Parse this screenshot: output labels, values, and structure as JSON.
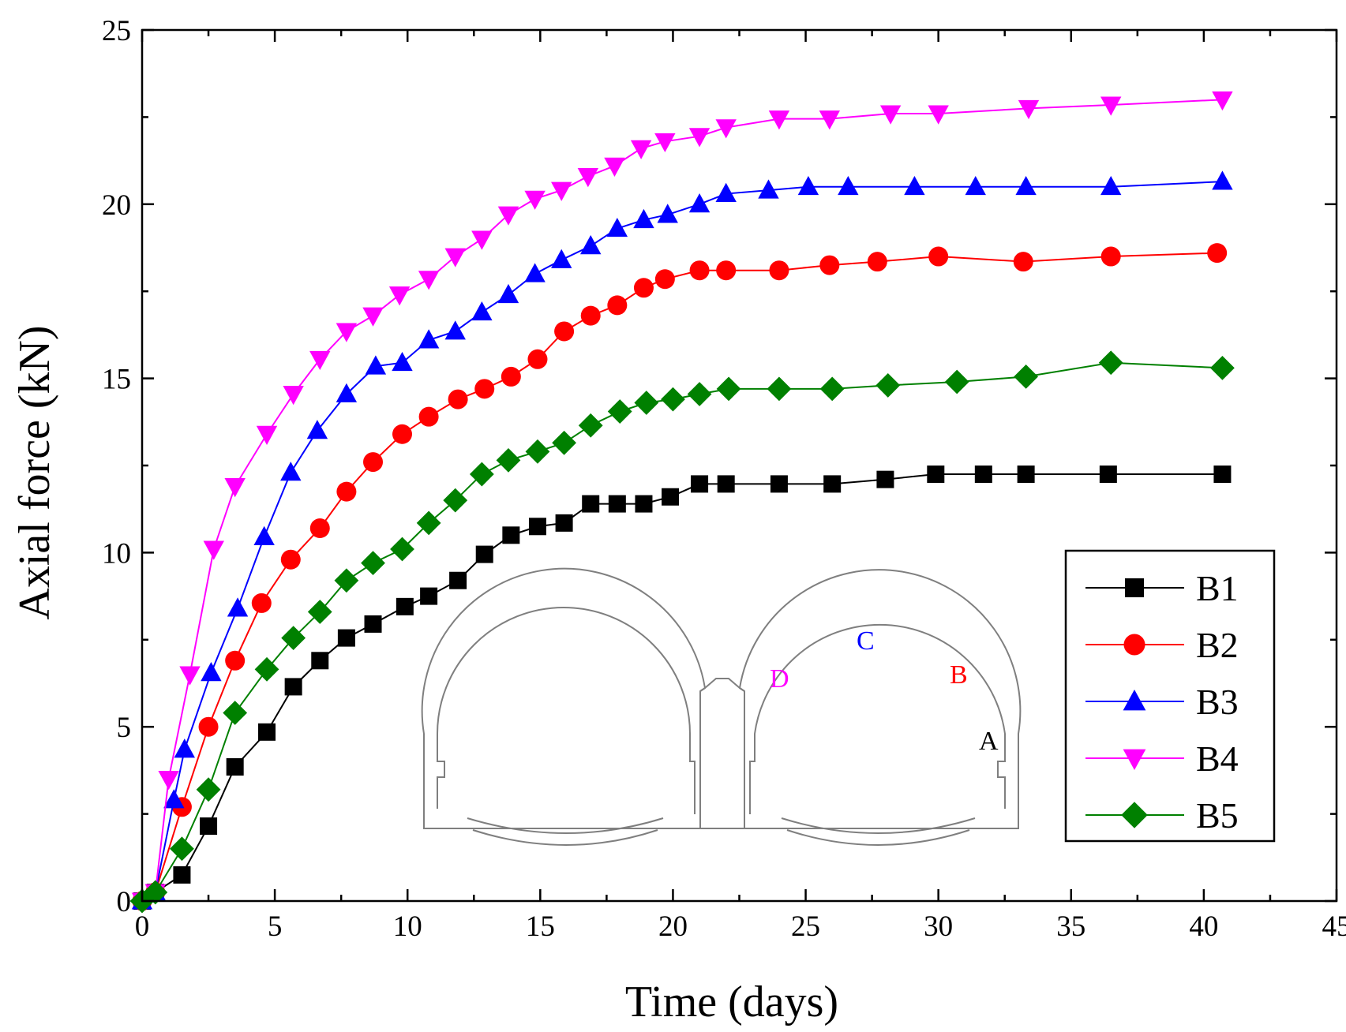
{
  "chart_data": {
    "type": "line",
    "xlabel": "Time (days)",
    "ylabel": "Axial force (kN)",
    "xlim": [
      0,
      45
    ],
    "ylim": [
      0,
      25
    ],
    "xticks": [
      0,
      5,
      10,
      15,
      20,
      25,
      30,
      35,
      40,
      45
    ],
    "yticks": [
      0,
      5,
      10,
      15,
      20,
      25
    ],
    "grid": false,
    "legend_position": "bottom-right",
    "series": [
      {
        "name": "B1",
        "marker": "square",
        "color": "#000000",
        "line_color": "#000000",
        "x": [
          0,
          0.5,
          1.5,
          2.5,
          3.5,
          4.7,
          5.7,
          6.7,
          7.7,
          8.7,
          9.9,
          10.8,
          11.9,
          12.9,
          13.9,
          14.9,
          15.9,
          16.9,
          17.9,
          18.9,
          19.9,
          21.0,
          22.0,
          24.0,
          26.0,
          28.0,
          29.9,
          31.7,
          33.3,
          36.4,
          40.7
        ],
        "y": [
          0,
          0.25,
          0.75,
          2.15,
          3.85,
          4.85,
          6.15,
          6.9,
          7.55,
          7.95,
          8.45,
          8.75,
          9.2,
          9.95,
          10.5,
          10.75,
          10.85,
          11.4,
          11.4,
          11.4,
          11.6,
          11.97,
          11.97,
          11.97,
          11.97,
          12.1,
          12.25,
          12.25,
          12.25,
          12.25,
          12.25
        ]
      },
      {
        "name": "B2",
        "marker": "circle",
        "color": "#ff0000",
        "line_color": "#ff0000",
        "x": [
          0,
          0.5,
          1.5,
          2.5,
          3.5,
          4.5,
          5.6,
          6.7,
          7.7,
          8.7,
          9.8,
          10.8,
          11.9,
          12.9,
          13.9,
          14.9,
          15.9,
          16.9,
          17.9,
          18.9,
          19.7,
          21.0,
          22.0,
          24.0,
          25.9,
          27.7,
          30.0,
          33.2,
          36.5,
          40.5
        ],
        "y": [
          0,
          0.25,
          2.7,
          5.0,
          6.9,
          8.55,
          9.8,
          10.7,
          11.75,
          12.6,
          13.4,
          13.9,
          14.4,
          14.7,
          15.05,
          15.55,
          16.35,
          16.8,
          17.1,
          17.6,
          17.85,
          18.1,
          18.1,
          18.1,
          18.25,
          18.35,
          18.5,
          18.35,
          18.5,
          18.6
        ]
      },
      {
        "name": "B3",
        "marker": "triangle-up",
        "color": "#0000ff",
        "line_color": "#0000ff",
        "x": [
          0,
          0.5,
          1.2,
          1.6,
          2.6,
          3.6,
          4.6,
          5.6,
          6.6,
          7.7,
          8.8,
          9.8,
          10.8,
          11.8,
          12.8,
          13.8,
          14.8,
          15.8,
          16.9,
          17.9,
          18.9,
          19.8,
          21.0,
          22.0,
          23.6,
          25.1,
          26.6,
          29.1,
          31.4,
          33.3,
          36.5,
          40.7
        ],
        "y": [
          0,
          0.25,
          2.9,
          4.35,
          6.55,
          8.4,
          10.45,
          12.3,
          13.5,
          14.55,
          15.35,
          15.45,
          16.1,
          16.35,
          16.9,
          17.4,
          18.0,
          18.4,
          18.8,
          19.3,
          19.55,
          19.7,
          20.0,
          20.3,
          20.4,
          20.5,
          20.5,
          20.5,
          20.5,
          20.5,
          20.5,
          20.65
        ]
      },
      {
        "name": "B4",
        "marker": "triangle-down",
        "color": "#ff00ff",
        "line_color": "#ff00ff",
        "x": [
          0,
          0.5,
          1.0,
          1.8,
          2.7,
          3.5,
          4.7,
          5.7,
          6.7,
          7.7,
          8.7,
          9.7,
          10.8,
          11.8,
          12.8,
          13.8,
          14.8,
          15.8,
          16.8,
          17.8,
          18.8,
          19.7,
          21.0,
          22.0,
          24.0,
          25.9,
          28.2,
          30.0,
          33.4,
          36.5,
          40.7
        ],
        "y": [
          0,
          0.25,
          3.5,
          6.5,
          10.1,
          11.9,
          13.4,
          14.55,
          15.55,
          16.35,
          16.8,
          17.4,
          17.85,
          18.5,
          19.0,
          19.7,
          20.15,
          20.4,
          20.8,
          21.1,
          21.6,
          21.8,
          21.95,
          22.2,
          22.45,
          22.45,
          22.6,
          22.6,
          22.75,
          22.85,
          23.0
        ]
      },
      {
        "name": "B5",
        "marker": "diamond",
        "color": "#008000",
        "line_color": "#008000",
        "x": [
          0,
          0.5,
          1.5,
          2.5,
          3.5,
          4.7,
          5.7,
          6.7,
          7.7,
          8.7,
          9.8,
          10.8,
          11.8,
          12.8,
          13.8,
          14.9,
          15.9,
          16.9,
          18.0,
          19.0,
          20.0,
          21.0,
          22.1,
          24.0,
          26.0,
          28.1,
          30.7,
          33.3,
          36.5,
          40.7
        ],
        "y": [
          0,
          0.25,
          1.5,
          3.2,
          5.4,
          6.65,
          7.55,
          8.3,
          9.2,
          9.7,
          10.1,
          10.85,
          11.5,
          12.25,
          12.65,
          12.9,
          13.15,
          13.65,
          14.05,
          14.3,
          14.4,
          14.55,
          14.7,
          14.7,
          14.7,
          14.8,
          14.9,
          15.05,
          15.45,
          15.3
        ]
      }
    ],
    "annotations": [
      {
        "text": "A",
        "color": "#000000"
      },
      {
        "text": "B",
        "color": "#ff0000"
      },
      {
        "text": "C",
        "color": "#0000ff"
      },
      {
        "text": "D",
        "color": "#ff00ff"
      }
    ]
  }
}
